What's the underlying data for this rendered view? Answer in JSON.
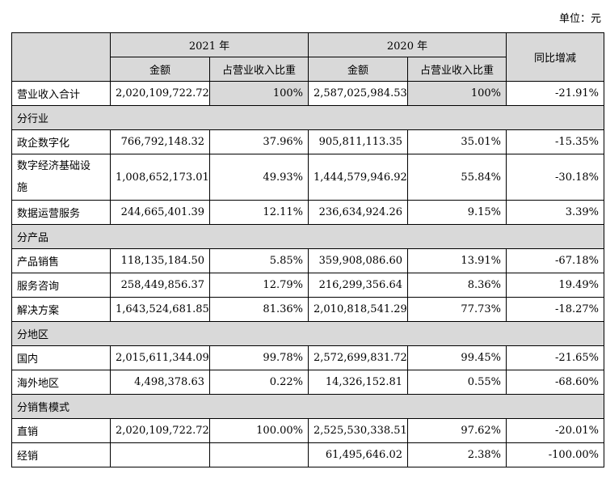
{
  "unit_label": "单位：元",
  "header": {
    "year_2021": "2021 年",
    "year_2020": "2020 年",
    "yoy": "同比增减",
    "amount": "金额",
    "ratio": "占营业收入比重"
  },
  "rows": [
    {
      "type": "total",
      "label": "营业收入合计",
      "a21": "2,020,109,722.72",
      "r21": "100%",
      "a20": "2,587,025,984.53",
      "r20": "100%",
      "yoy": "-21.91%"
    },
    {
      "type": "section",
      "label": "分行业"
    },
    {
      "type": "row",
      "label": "政企数字化",
      "a21": "766,792,148.32",
      "r21": "37.96%",
      "a20": "905,811,113.35",
      "r20": "35.01%",
      "yoy": "-15.35%"
    },
    {
      "type": "row2",
      "label_l1": "数字经济基础设",
      "label_l2": "施",
      "a21": "1,008,652,173.01",
      "r21": "49.93%",
      "a20": "1,444,579,946.92",
      "r20": "55.84%",
      "yoy": "-30.18%"
    },
    {
      "type": "row",
      "label": "数据运营服务",
      "a21": "244,665,401.39",
      "r21": "12.11%",
      "a20": "236,634,924.26",
      "r20": "9.15%",
      "yoy": "3.39%"
    },
    {
      "type": "section",
      "label": "分产品"
    },
    {
      "type": "row",
      "label": "产品销售",
      "a21": "118,135,184.50",
      "r21": "5.85%",
      "a20": "359,908,086.60",
      "r20": "13.91%",
      "yoy": "-67.18%"
    },
    {
      "type": "row",
      "label": "服务咨询",
      "a21": "258,449,856.37",
      "r21": "12.79%",
      "a20": "216,299,356.64",
      "r20": "8.36%",
      "yoy": "19.49%"
    },
    {
      "type": "row",
      "label": "解决方案",
      "a21": "1,643,524,681.85",
      "r21": "81.36%",
      "a20": "2,010,818,541.29",
      "r20": "77.73%",
      "yoy": "-18.27%"
    },
    {
      "type": "section",
      "label": "分地区"
    },
    {
      "type": "row",
      "label": "国内",
      "a21": "2,015,611,344.09",
      "r21": "99.78%",
      "a20": "2,572,699,831.72",
      "r20": "99.45%",
      "yoy": "-21.65%"
    },
    {
      "type": "row",
      "label": "海外地区",
      "a21": "4,498,378.63",
      "r21": "0.22%",
      "a20": "14,326,152.81",
      "r20": "0.55%",
      "yoy": "-68.60%"
    },
    {
      "type": "section",
      "label": "分销售模式"
    },
    {
      "type": "row",
      "label": "直销",
      "a21": "2,020,109,722.72",
      "r21": "100.00%",
      "a20": "2,525,530,338.51",
      "r20": "97.62%",
      "yoy": "-20.01%"
    },
    {
      "type": "row",
      "label": "经销",
      "a21": "",
      "r21": "",
      "a20": "61,495,646.02",
      "r20": "2.38%",
      "yoy": "-100.00%"
    }
  ]
}
